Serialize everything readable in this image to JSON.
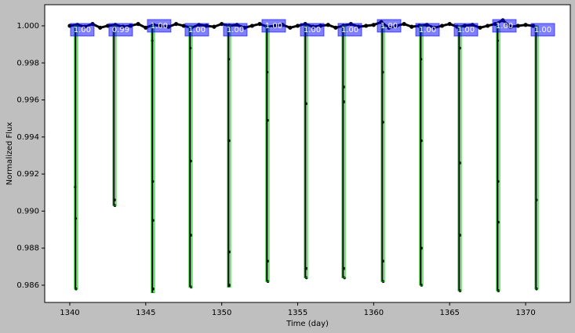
{
  "chart_data": {
    "type": "scatter",
    "xlabel": "Time (day)",
    "ylabel": "Normalized Flux",
    "xlim": [
      1338.35,
      1372.94
    ],
    "ylim": [
      0.98507,
      1.00114
    ],
    "xticks": [
      1340,
      1345,
      1350,
      1355,
      1360,
      1365,
      1370
    ],
    "yticks": [
      0.986,
      0.988,
      {
        "value": 0.99,
        "label": "0.990"
      },
      0.992,
      0.994,
      0.996,
      0.998,
      {
        "value": 1,
        "label": "1.000"
      }
    ],
    "series": [
      {
        "color": "#000000",
        "x": [
          1340,
          1340.5,
          1341,
          1341.5,
          1342,
          1342.5,
          1343,
          1343.5,
          1344,
          1344.5,
          1345,
          1345.5,
          1346,
          1346.5,
          1347,
          1347.5,
          1348,
          1348.5,
          1349,
          1349.5,
          1350,
          1350.5,
          1351,
          1351.5,
          1352,
          1352.5,
          1353,
          1353.5,
          1354,
          1354.5,
          1355,
          1355.5,
          1356,
          1356.5,
          1357,
          1357.5,
          1358,
          1358.5,
          1359,
          1359.5,
          1360,
          1360.5,
          1361,
          1361.5,
          1362,
          1362.5,
          1363,
          1363.5,
          1364,
          1364.5,
          1365,
          1365.5,
          1366,
          1366.5,
          1367,
          1367.5,
          1368,
          1368.5,
          1369,
          1369.5,
          1370,
          1370.5
        ],
        "values": [
          1.0,
          1.00005,
          0.99995,
          1.0001,
          0.9999,
          1.0,
          1.00005,
          0.99995,
          1.0,
          1.0001,
          0.9999,
          1.00005,
          1.0,
          0.99995,
          1.0001,
          1.0,
          0.9999,
          1.00005,
          1.0,
          0.99995,
          1.0001,
          1.0,
          1.00005,
          0.9999,
          1.0,
          1.0001,
          0.99995,
          1.0,
          1.00005,
          0.9999,
          1.0,
          1.0001,
          0.99995,
          1.0,
          1.00005,
          0.9999,
          1.0,
          1.0001,
          0.99995,
          1.0,
          1.00005,
          1.0002,
          0.9999,
          1.0,
          1.0001,
          0.99995,
          1.0,
          1.00005,
          0.9999,
          1.0,
          1.0001,
          0.99995,
          1.0,
          1.00005,
          0.9999,
          1.0,
          1.0001,
          1.0003,
          0.99995,
          1.0,
          1.00005,
          1.0
        ]
      },
      {
        "color": "#000000",
        "x": [
          1340.35,
          1340.38,
          1340.41,
          1342.94,
          1342.97,
          1345.42,
          1345.45,
          1345.47,
          1345.49,
          1347.92,
          1347.95,
          1347.97,
          1347.99,
          1350.45,
          1350.47,
          1350.49,
          1350.51,
          1352.98,
          1353.01,
          1353.03,
          1353.04,
          1355.55,
          1355.57,
          1355.58,
          1358.04,
          1358.05,
          1358.06,
          1358.08,
          1360.58,
          1360.6,
          1360.62,
          1360.63,
          1363.1,
          1363.12,
          1363.14,
          1363.15,
          1365.66,
          1365.67,
          1365.68,
          1365.69,
          1368.15,
          1368.17,
          1368.19,
          1368.21,
          1370.7,
          1370.72
        ],
        "values": [
          0.9913,
          0.9896,
          0.9858,
          0.9906,
          0.9903,
          0.9992,
          0.9916,
          0.9895,
          0.9858,
          0.9988,
          0.9927,
          0.9887,
          0.9859,
          0.9982,
          0.9938,
          0.9878,
          0.986,
          0.9975,
          0.9949,
          0.9873,
          0.9862,
          0.9958,
          0.9869,
          0.9864,
          0.9967,
          0.9959,
          0.9869,
          0.9864,
          0.9975,
          0.9948,
          0.9873,
          0.9862,
          0.9982,
          0.9938,
          0.988,
          0.986,
          0.9988,
          0.9926,
          0.9887,
          0.9857,
          0.9992,
          0.9916,
          0.9894,
          0.9857,
          0.9906,
          0.9858
        ]
      }
    ],
    "model": {
      "color": "#00cc00",
      "x": [
        1340.41,
        1342.94,
        1345.47,
        1347.95,
        1350.48,
        1353.01,
        1355.54,
        1358.02,
        1360.6,
        1363.13,
        1365.66,
        1368.19,
        1370.72
      ],
      "values": [
        0.9858,
        0.9903,
        0.9856,
        0.9859,
        0.9859,
        0.9862,
        0.9864,
        0.9864,
        0.9862,
        0.986,
        0.9857,
        0.9857,
        0.9858
      ]
    },
    "annotations": {
      "color": "#0000ff",
      "x": [
        1340.41,
        1342.94,
        1345.47,
        1347.95,
        1350.48,
        1353.01,
        1355.54,
        1358.02,
        1360.6,
        1363.13,
        1365.66,
        1368.19,
        1370.72
      ],
      "values": [
        1,
        0.99,
        1,
        1,
        1,
        1,
        1,
        1,
        1,
        1,
        1,
        1,
        1
      ],
      "value_labels": [
        "1.00",
        "0.99",
        "1.00",
        "1.00",
        "1.00",
        "1.00",
        "1.00",
        "1.00",
        "1.00",
        "1.00",
        "1.00",
        "1.00",
        "1.00"
      ]
    }
  }
}
